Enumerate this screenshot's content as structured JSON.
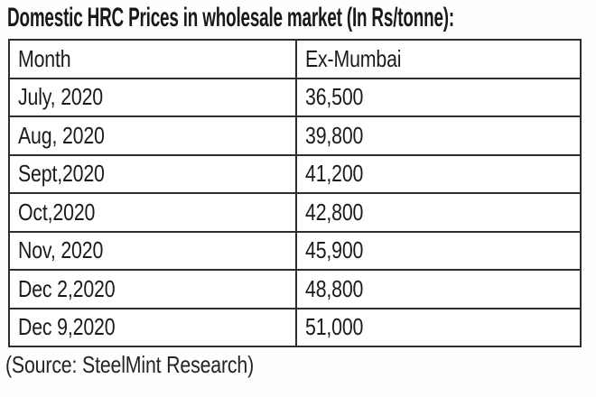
{
  "colors": {
    "text": "#1b1b1b",
    "border": "#2d2d2d",
    "background": "#ffffff"
  },
  "chart_data": {
    "type": "table",
    "title": "Domestic HRC Prices in wholesale market (In Rs/tonne):",
    "columns": [
      "Month",
      "Ex-Mumbai"
    ],
    "rows": [
      [
        "July, 2020",
        "36,500"
      ],
      [
        "Aug, 2020",
        "39,800"
      ],
      [
        "Sept,2020",
        "41,200"
      ],
      [
        "Oct,2020",
        "42,800"
      ],
      [
        "Nov, 2020",
        "45,900"
      ],
      [
        "Dec 2,2020",
        "48,800"
      ],
      [
        "Dec 9,2020",
        "51,000"
      ]
    ],
    "unit": "Rs/tonne",
    "source": "(Source: SteelMint Research)"
  }
}
